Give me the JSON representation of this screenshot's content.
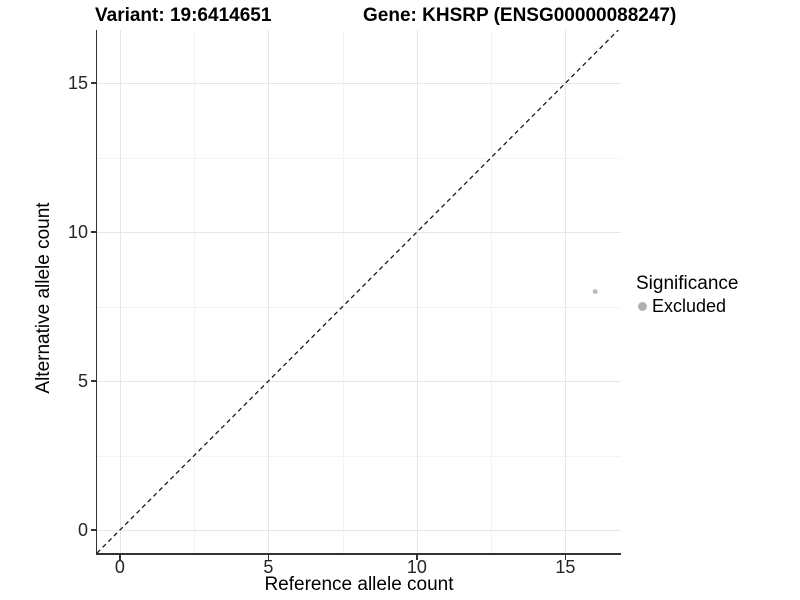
{
  "chart_data": {
    "type": "scatter",
    "title_left": "Variant: 19:6414651",
    "title_right": "Gene: KHSRP (ENSG00000088247)",
    "xlabel": "Reference allele count",
    "ylabel": "Alternative allele count",
    "xlim": [
      -0.77,
      16.87
    ],
    "ylim": [
      -0.77,
      16.78
    ],
    "x_ticks": [
      0,
      5,
      10,
      15
    ],
    "y_ticks": [
      0,
      5,
      10,
      15
    ],
    "x_minor_ticks": [
      2.5,
      7.5,
      12.5
    ],
    "y_minor_ticks": [
      2.5,
      7.5,
      12.5
    ],
    "grid": "major and minor, light gray on white",
    "identity_line": {
      "equation": "y = x",
      "style": "dashed",
      "color": "#1a1a1a"
    },
    "series": [
      {
        "name": "Excluded",
        "color": "#bdbdbd",
        "point_radius": 2.5,
        "points": [
          {
            "x": 16,
            "y": 8
          }
        ]
      }
    ],
    "legend": {
      "position": "right",
      "title": "Significance",
      "entries": [
        {
          "label": "Excluded",
          "color": "#b0b0b0"
        }
      ]
    }
  },
  "colors": {
    "axis": "#333333",
    "grid_major": "#e6e6e6",
    "grid_minor": "#f4f4f4",
    "point": "#bdbdbd"
  }
}
